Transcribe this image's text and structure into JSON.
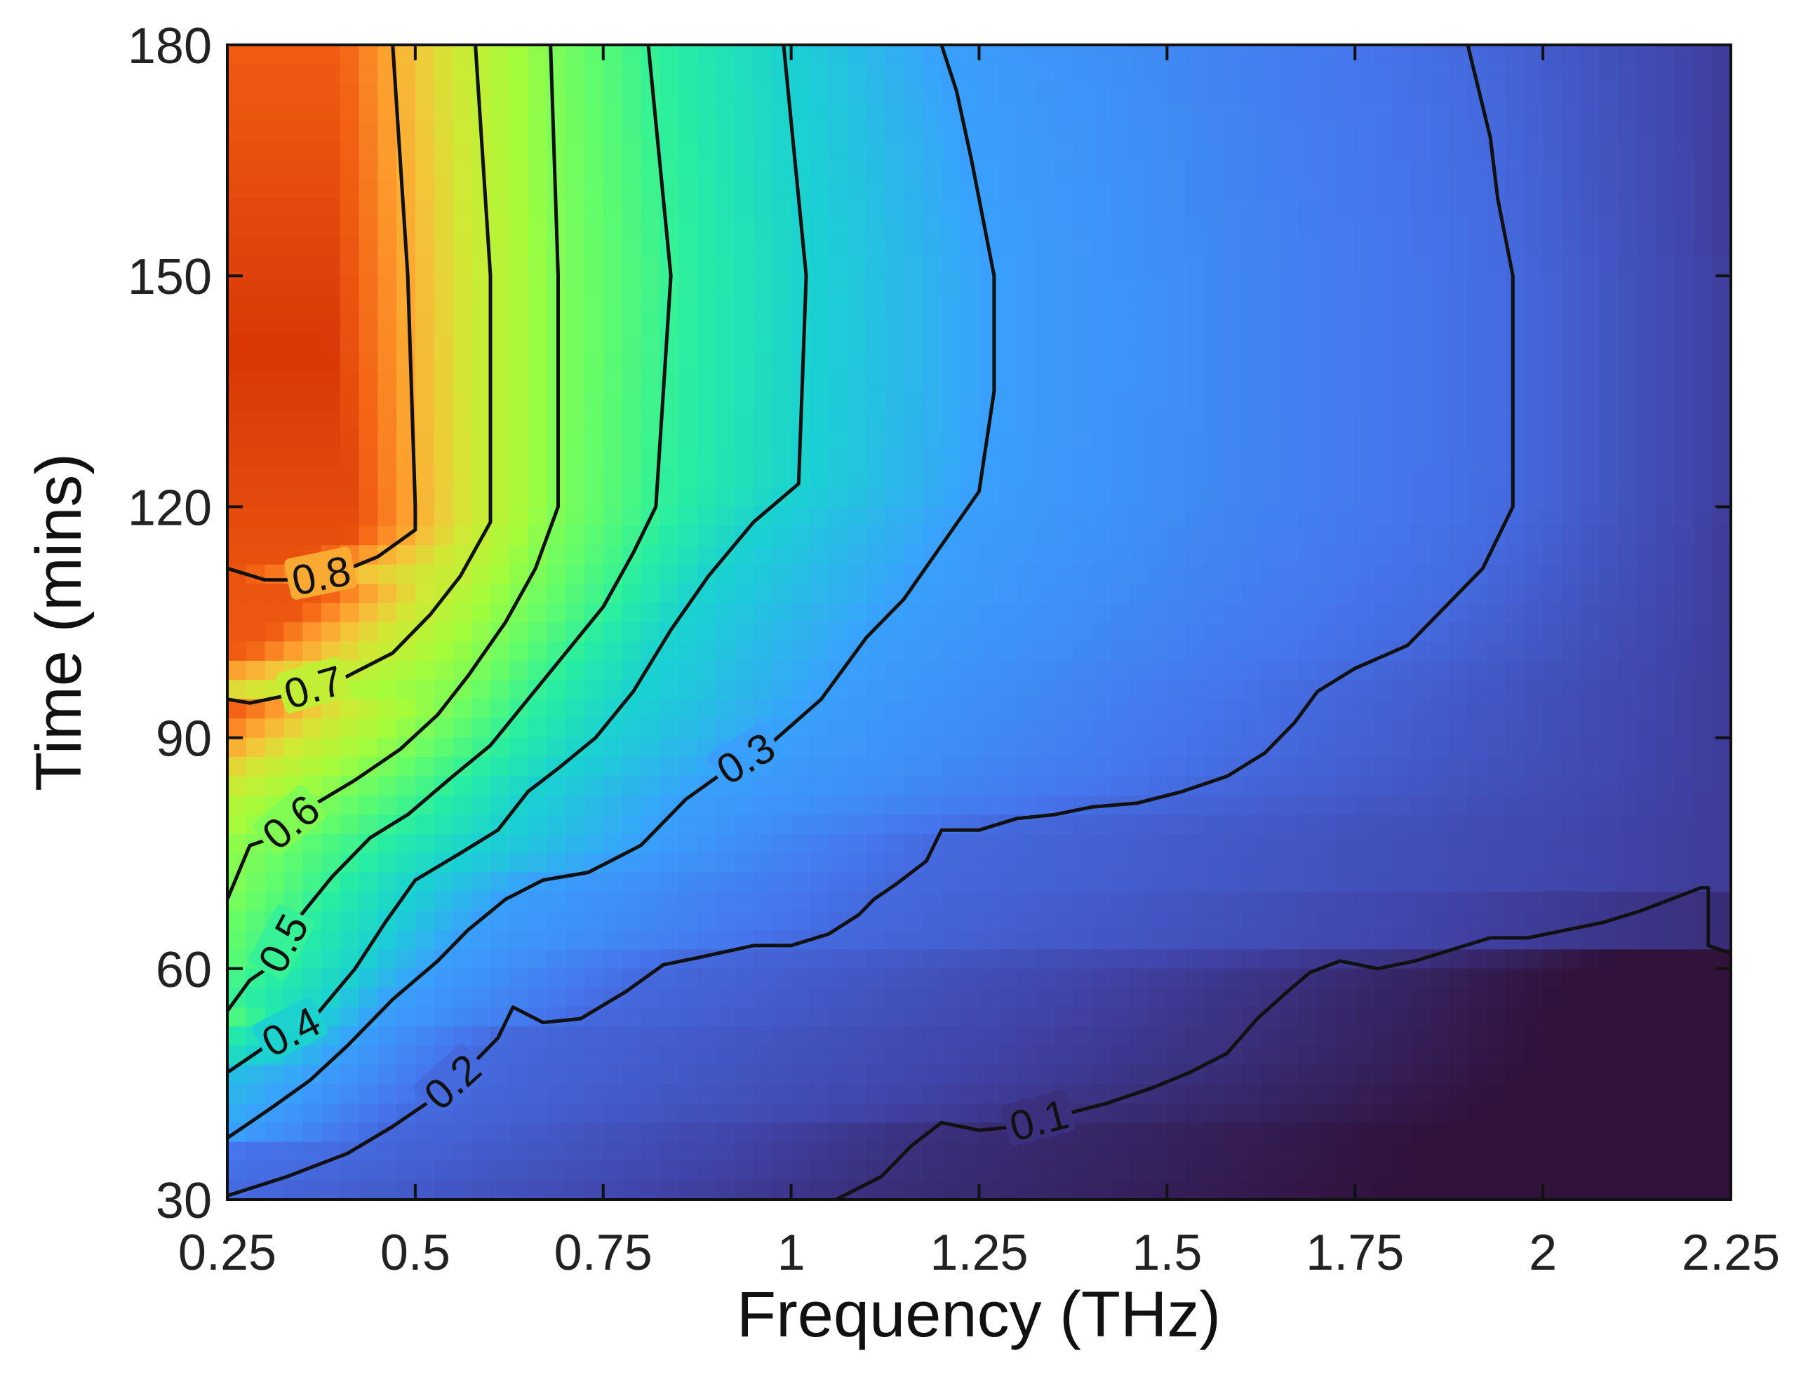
{
  "chart_data": {
    "type": "heatmap",
    "title": "",
    "xlabel": "Frequency (THz)",
    "ylabel": "Time (mins)",
    "xlim": [
      0.25,
      2.25
    ],
    "ylim": [
      30,
      180
    ],
    "xticks": [
      0.25,
      0.5,
      0.75,
      1,
      1.25,
      1.5,
      1.75,
      2,
      2.25
    ],
    "xtick_labels": [
      "0.25",
      "0.5",
      "0.75",
      "1",
      "1.25",
      "1.5",
      "1.75",
      "2",
      "2.25"
    ],
    "yticks": [
      30,
      60,
      90,
      120,
      150,
      180
    ],
    "ytick_labels": [
      "30",
      "60",
      "90",
      "120",
      "150",
      "180"
    ],
    "grid": false,
    "colormap": "turbo",
    "color_range": [
      0.05,
      0.9
    ],
    "contours": [
      {
        "level": 0.8,
        "label": "0.8",
        "points": [
          [
            0.25,
            112
          ],
          [
            0.3,
            110.5
          ],
          [
            0.35,
            110.5
          ],
          [
            0.4,
            111.5
          ],
          [
            0.45,
            113.5
          ],
          [
            0.5,
            117
          ],
          [
            0.5,
            120
          ],
          [
            0.49,
            150
          ],
          [
            0.47,
            180
          ]
        ]
      },
      {
        "level": 0.7,
        "label": "0.7",
        "points": [
          [
            0.25,
            95
          ],
          [
            0.28,
            94.5
          ],
          [
            0.33,
            95.5
          ],
          [
            0.4,
            97.5
          ],
          [
            0.47,
            101
          ],
          [
            0.52,
            106
          ],
          [
            0.56,
            111
          ],
          [
            0.6,
            118
          ],
          [
            0.6,
            150
          ],
          [
            0.58,
            180
          ]
        ]
      },
      {
        "level": 0.6,
        "label": "0.6",
        "points": [
          [
            0.25,
            69
          ],
          [
            0.28,
            76
          ],
          [
            0.31,
            77
          ],
          [
            0.36,
            81
          ],
          [
            0.42,
            84.5
          ],
          [
            0.48,
            88.5
          ],
          [
            0.53,
            93
          ],
          [
            0.57,
            98
          ],
          [
            0.62,
            105
          ],
          [
            0.66,
            112
          ],
          [
            0.69,
            120
          ],
          [
            0.69,
            150
          ],
          [
            0.68,
            180
          ]
        ]
      },
      {
        "level": 0.5,
        "label": "0.5",
        "points": [
          [
            0.25,
            54.5
          ],
          [
            0.28,
            58.5
          ],
          [
            0.31,
            60.5
          ],
          [
            0.34,
            66
          ],
          [
            0.39,
            72
          ],
          [
            0.44,
            77
          ],
          [
            0.49,
            80
          ],
          [
            0.55,
            85
          ],
          [
            0.6,
            89
          ],
          [
            0.65,
            95
          ],
          [
            0.7,
            101
          ],
          [
            0.75,
            107
          ],
          [
            0.79,
            114
          ],
          [
            0.82,
            120
          ],
          [
            0.84,
            150
          ],
          [
            0.81,
            180
          ]
        ]
      },
      {
        "level": 0.4,
        "label": "0.4",
        "points": [
          [
            0.25,
            46.5
          ],
          [
            0.28,
            48.5
          ],
          [
            0.31,
            50.5
          ],
          [
            0.36,
            53
          ],
          [
            0.42,
            60
          ],
          [
            0.46,
            66
          ],
          [
            0.5,
            71.5
          ],
          [
            0.56,
            75
          ],
          [
            0.61,
            78
          ],
          [
            0.65,
            83
          ],
          [
            0.69,
            86
          ],
          [
            0.74,
            90
          ],
          [
            0.79,
            96
          ],
          [
            0.84,
            104
          ],
          [
            0.89,
            111
          ],
          [
            0.95,
            118
          ],
          [
            1.01,
            123
          ],
          [
            1.02,
            150
          ],
          [
            0.99,
            180
          ]
        ]
      },
      {
        "level": 0.3,
        "label": "0.3",
        "points": [
          [
            0.25,
            38
          ],
          [
            0.28,
            40
          ],
          [
            0.31,
            42
          ],
          [
            0.36,
            45.5
          ],
          [
            0.41,
            50
          ],
          [
            0.47,
            56
          ],
          [
            0.53,
            61
          ],
          [
            0.57,
            65
          ],
          [
            0.62,
            69
          ],
          [
            0.67,
            71.5
          ],
          [
            0.73,
            72.5
          ],
          [
            0.8,
            76
          ],
          [
            0.86,
            82
          ],
          [
            0.91,
            85.5
          ],
          [
            0.97,
            89
          ],
          [
            1.04,
            95
          ],
          [
            1.1,
            103
          ],
          [
            1.15,
            108
          ],
          [
            1.2,
            115
          ],
          [
            1.25,
            122
          ],
          [
            1.27,
            135
          ],
          [
            1.27,
            150
          ],
          [
            1.24,
            165
          ],
          [
            1.22,
            174
          ],
          [
            1.2,
            180
          ]
        ]
      },
      {
        "level": 0.2,
        "label": "0.2",
        "points": [
          [
            0.25,
            30.5
          ],
          [
            0.33,
            33
          ],
          [
            0.41,
            36
          ],
          [
            0.47,
            39.5
          ],
          [
            0.53,
            43.5
          ],
          [
            0.57,
            47
          ],
          [
            0.61,
            51
          ],
          [
            0.63,
            55
          ],
          [
            0.67,
            53
          ],
          [
            0.72,
            53.5
          ],
          [
            0.78,
            57
          ],
          [
            0.83,
            60.5
          ],
          [
            0.88,
            61.5
          ],
          [
            0.95,
            63
          ],
          [
            1,
            63
          ],
          [
            1.05,
            64.5
          ],
          [
            1.09,
            67
          ],
          [
            1.11,
            69
          ],
          [
            1.14,
            71
          ],
          [
            1.18,
            74
          ],
          [
            1.2,
            78
          ],
          [
            1.25,
            78
          ],
          [
            1.3,
            79.5
          ],
          [
            1.35,
            80
          ],
          [
            1.4,
            81
          ],
          [
            1.46,
            81.5
          ],
          [
            1.52,
            83
          ],
          [
            1.58,
            85
          ],
          [
            1.63,
            88
          ],
          [
            1.67,
            92
          ],
          [
            1.7,
            96
          ],
          [
            1.75,
            99
          ],
          [
            1.82,
            102
          ],
          [
            1.87,
            107
          ],
          [
            1.92,
            112
          ],
          [
            1.96,
            120
          ],
          [
            1.96,
            150
          ],
          [
            1.94,
            160
          ],
          [
            1.93,
            168
          ],
          [
            1.9,
            180
          ]
        ]
      },
      {
        "level": 0.1,
        "label": "0.1",
        "points": [
          [
            1.06,
            30
          ],
          [
            1.12,
            33
          ],
          [
            1.16,
            37
          ],
          [
            1.2,
            40
          ],
          [
            1.25,
            39
          ],
          [
            1.3,
            39.5
          ],
          [
            1.36,
            41
          ],
          [
            1.42,
            42.5
          ],
          [
            1.48,
            44.5
          ],
          [
            1.53,
            46.5
          ],
          [
            1.58,
            49
          ],
          [
            1.62,
            53.5
          ],
          [
            1.66,
            57
          ],
          [
            1.69,
            59.5
          ],
          [
            1.73,
            61
          ],
          [
            1.78,
            60
          ],
          [
            1.83,
            61
          ],
          [
            1.88,
            62.5
          ],
          [
            1.93,
            64
          ],
          [
            1.98,
            64
          ],
          [
            2.03,
            65
          ],
          [
            2.08,
            66
          ],
          [
            2.13,
            67.5
          ],
          [
            2.17,
            69
          ],
          [
            2.21,
            70.5
          ],
          [
            2.22,
            70.5
          ],
          [
            2.22,
            63
          ],
          [
            2.25,
            62
          ]
        ]
      }
    ]
  }
}
